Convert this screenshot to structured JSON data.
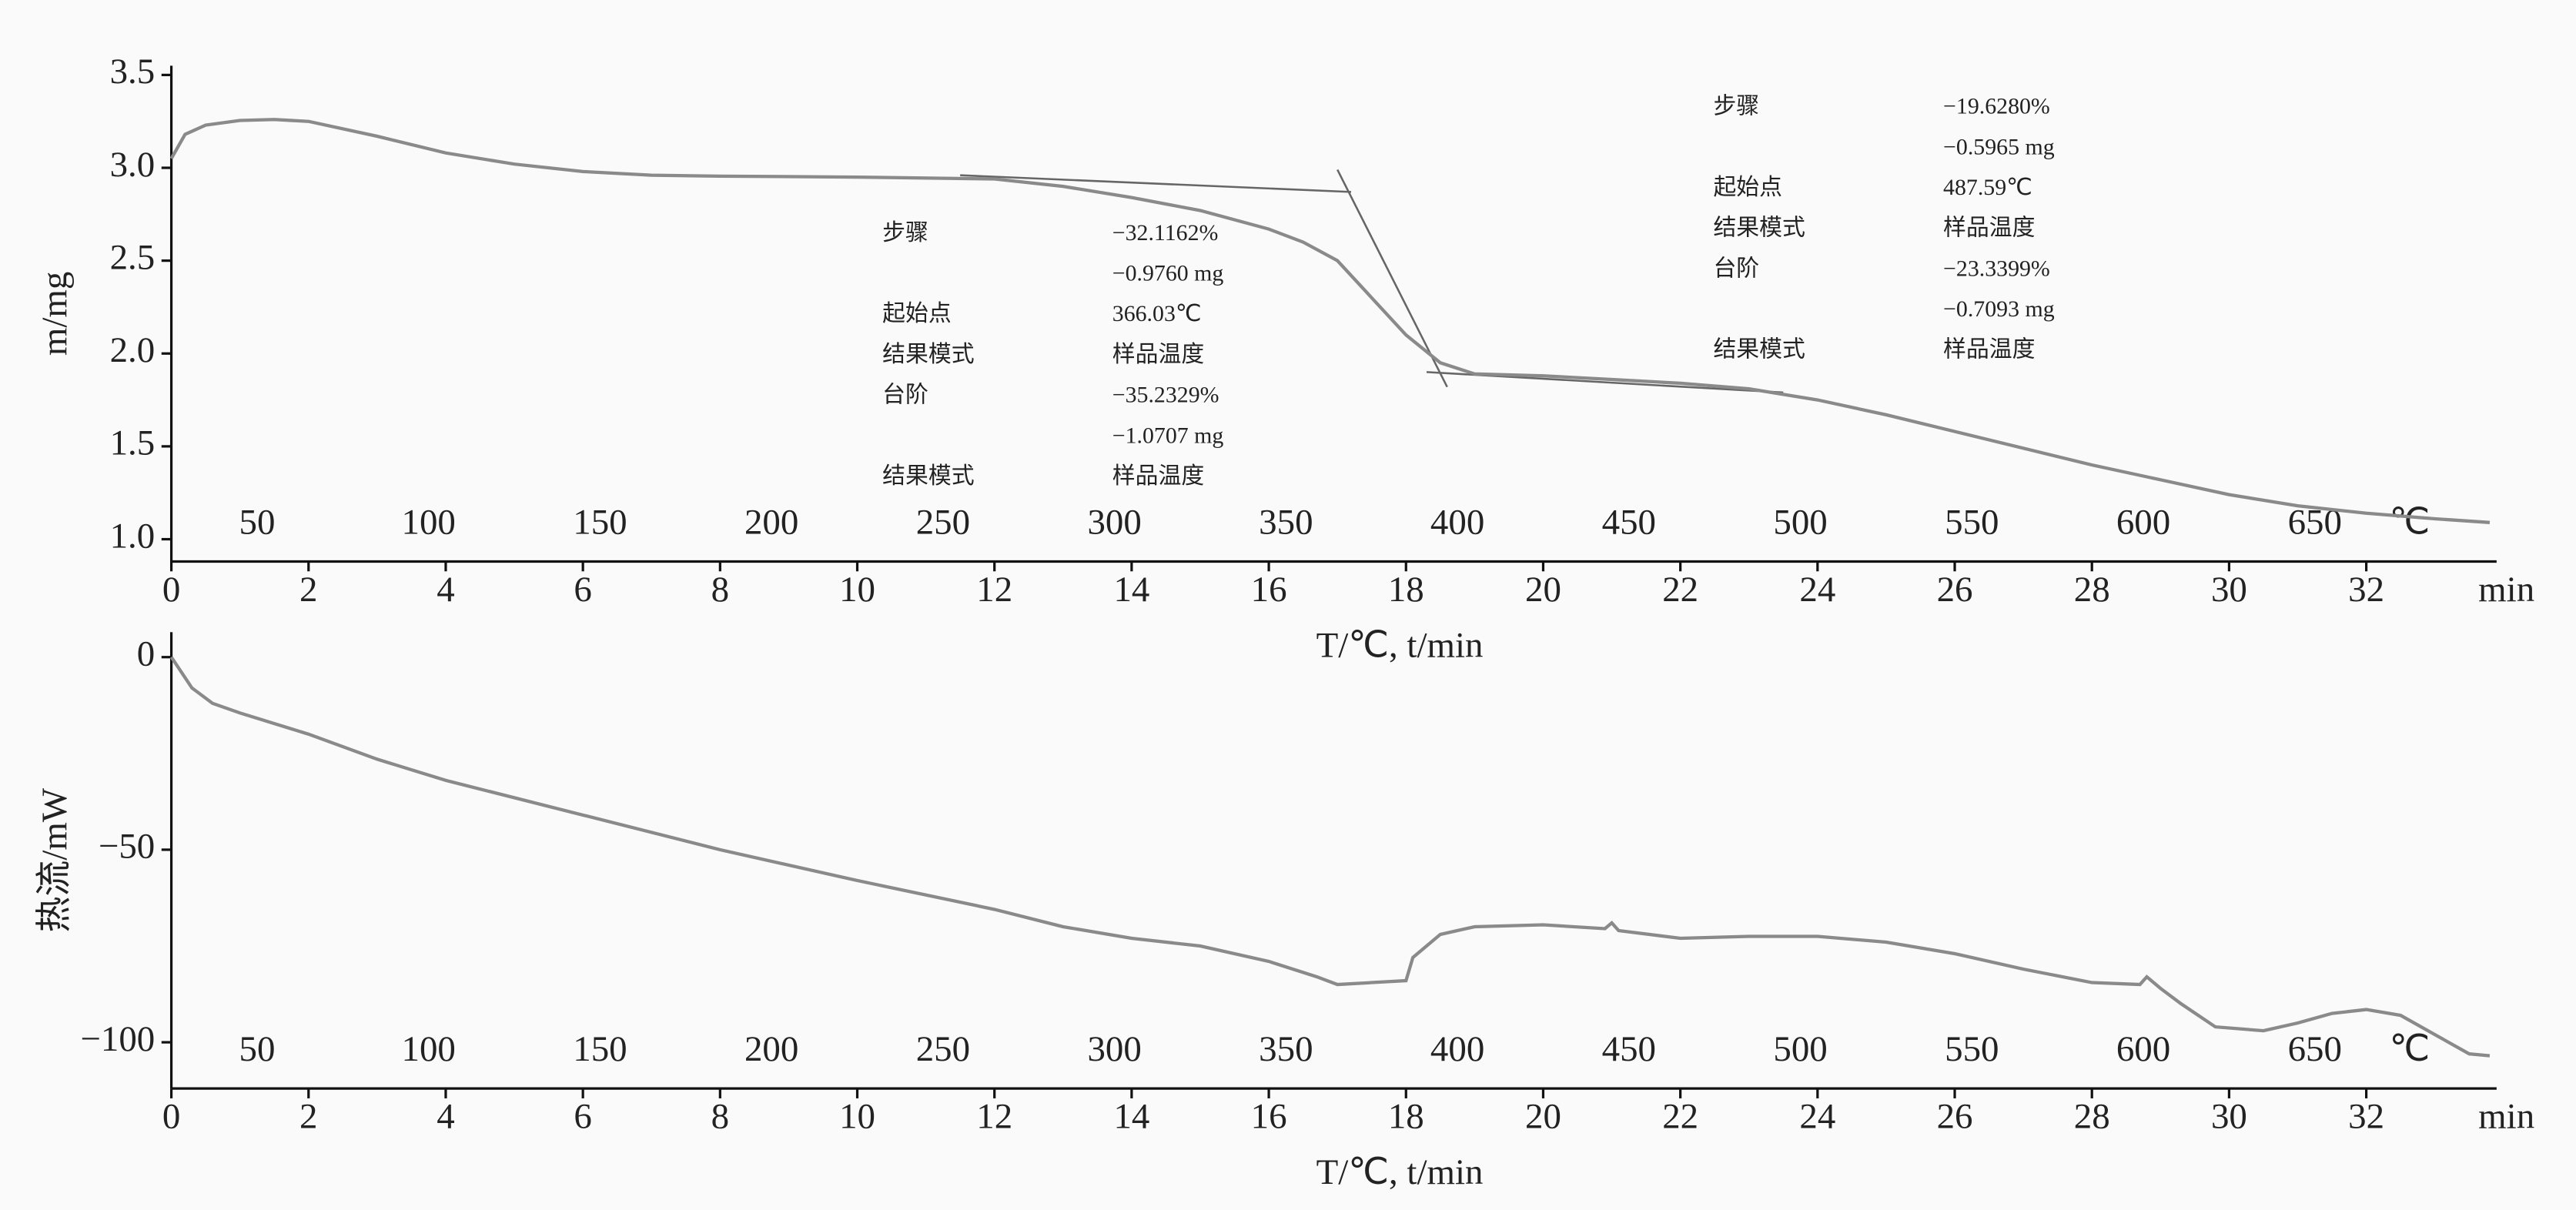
{
  "chart_data": [
    {
      "type": "line",
      "xlabel": "T/℃, t/min",
      "ylabel": "m/mg",
      "xunit": "min",
      "x2unit": "℃",
      "xlim": [
        0,
        33.9
      ],
      "xticks": [
        0,
        2,
        4,
        6,
        8,
        10,
        12,
        14,
        16,
        18,
        20,
        22,
        24,
        26,
        28,
        30,
        32
      ],
      "x2lim": [
        25,
        703
      ],
      "x2ticks": [
        50,
        100,
        150,
        200,
        250,
        300,
        350,
        400,
        450,
        500,
        550,
        600,
        650
      ],
      "ylim": [
        0.88,
        3.55
      ],
      "yticks": [
        {
          "value": 1,
          "label": "1.0"
        },
        1.5,
        {
          "value": 2,
          "label": "2.0"
        },
        2.5,
        {
          "value": 3,
          "label": "3.0"
        },
        3.5
      ],
      "x": [
        0,
        0.2,
        0.5,
        1,
        1.5,
        2,
        3,
        4,
        5,
        6,
        7,
        8,
        10,
        12,
        13,
        14,
        15,
        16,
        16.5,
        17,
        17.5,
        18,
        18.5,
        19,
        20,
        21,
        22,
        23,
        24,
        25,
        26,
        27,
        28,
        29,
        30,
        31,
        32,
        33,
        33.8
      ],
      "series": [
        {
          "color": "#8a8a8a",
          "values": [
            3.05,
            3.18,
            3.23,
            3.255,
            3.26,
            3.25,
            3.17,
            3.08,
            3.02,
            2.98,
            2.96,
            2.955,
            2.95,
            2.94,
            2.9,
            2.84,
            2.77,
            2.67,
            2.6,
            2.5,
            2.3,
            2.1,
            1.95,
            1.89,
            1.88,
            1.86,
            1.84,
            1.81,
            1.75,
            1.67,
            1.58,
            1.49,
            1.4,
            1.32,
            1.24,
            1.18,
            1.14,
            1.11,
            1.09
          ]
        }
      ],
      "reference_lines": [
        {
          "x": [
            11.5,
            17.2
          ],
          "y": [
            2.96,
            2.87
          ]
        },
        {
          "x": [
            17.0,
            18.6
          ],
          "y": [
            2.99,
            1.82
          ]
        },
        {
          "x": [
            18.3,
            23.5
          ],
          "y": [
            1.9,
            1.79
          ]
        }
      ],
      "annotations": [
        [
          {
            "label": "步骤",
            "values": [
              "−32.1162%",
              "−0.9760 mg"
            ]
          },
          {
            "label": "起始点",
            "values": [
              "366.03℃"
            ]
          },
          {
            "label": "结果模式",
            "values": [
              "样品温度"
            ]
          },
          {
            "label": "台阶",
            "values": [
              "−35.2329%",
              "−1.0707 mg"
            ]
          },
          {
            "label": "结果模式",
            "values": [
              "样品温度"
            ]
          }
        ],
        [
          {
            "label": "步骤",
            "values": [
              "−19.6280%",
              "−0.5965 mg"
            ]
          },
          {
            "label": "起始点",
            "values": [
              "487.59℃"
            ]
          },
          {
            "label": "结果模式",
            "values": [
              "样品温度"
            ]
          },
          {
            "label": "台阶",
            "values": [
              "−23.3399%",
              "−0.7093 mg"
            ]
          },
          {
            "label": "结果模式",
            "values": [
              "样品温度"
            ]
          }
        ]
      ]
    },
    {
      "type": "line",
      "xlabel": "T/℃, t/min",
      "ylabel": "热流/mW",
      "xunit": "min",
      "x2unit": "℃",
      "xlim": [
        0,
        33.9
      ],
      "xticks": [
        0,
        2,
        4,
        6,
        8,
        10,
        12,
        14,
        16,
        18,
        20,
        22,
        24,
        26,
        28,
        30,
        32
      ],
      "x2lim": [
        25,
        703
      ],
      "x2ticks": [
        50,
        100,
        150,
        200,
        250,
        300,
        350,
        400,
        450,
        500,
        550,
        600,
        650
      ],
      "ylim": [
        -112,
        6.5
      ],
      "yticks": [
        {
          "value": -100,
          "label": "−100"
        },
        {
          "value": -50,
          "label": "−50"
        },
        0
      ],
      "x": [
        0,
        0.3,
        0.6,
        1,
        2,
        3,
        4,
        6,
        8,
        10,
        12,
        13,
        14,
        15,
        16,
        16.7,
        17,
        17.5,
        18,
        18.1,
        18.5,
        19,
        20,
        20.9,
        21,
        21.1,
        22,
        23,
        24,
        25,
        26,
        27,
        28,
        28.7,
        28.8,
        29,
        29.3,
        29.8,
        30.5,
        31,
        31.5,
        32,
        32.5,
        33,
        33.5,
        33.8
      ],
      "series": [
        {
          "color": "#8a8a8a",
          "values": [
            0,
            -8,
            -12,
            -14.5,
            -20,
            -26.5,
            -32,
            -41,
            -50,
            -58,
            -65.5,
            -70,
            -73,
            -75,
            -79,
            -83,
            -85,
            -84.5,
            -84,
            -78,
            -72,
            -70,
            -69.5,
            -70.5,
            -69,
            -71,
            -73,
            -72.5,
            -72.5,
            -74,
            -77,
            -81,
            -84.5,
            -85,
            -83,
            -86,
            -90,
            -96,
            -97,
            -95,
            -92.5,
            -91.5,
            -93,
            -98,
            -103,
            -103.5
          ]
        }
      ]
    }
  ]
}
